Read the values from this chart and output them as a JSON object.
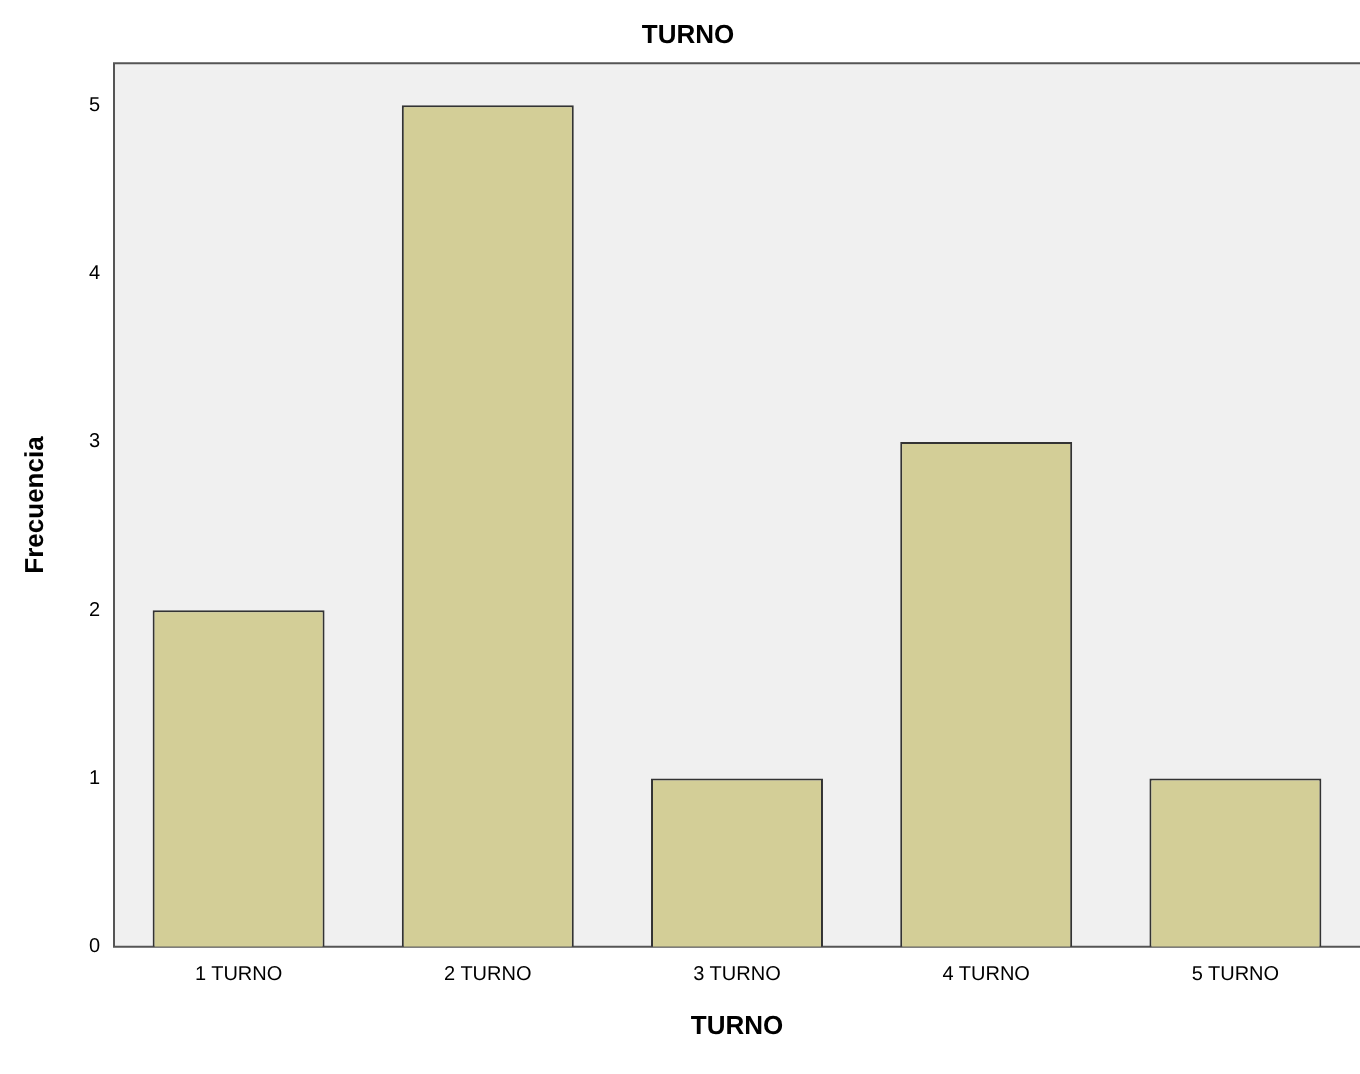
{
  "chart_data": {
    "type": "bar",
    "title": "TURNO",
    "xlabel": "TURNO",
    "ylabel": "Frecuencia",
    "categories": [
      "1 TURNO",
      "2 TURNO",
      "3 TURNO",
      "4 TURNO",
      "5 TURNO"
    ],
    "values": [
      2,
      5,
      1,
      3,
      1
    ],
    "color": "#d3ce97",
    "ylim": [
      0,
      5.25
    ],
    "yticks": [
      0,
      1,
      2,
      3,
      4,
      5
    ],
    "grid": false,
    "legend": false
  }
}
